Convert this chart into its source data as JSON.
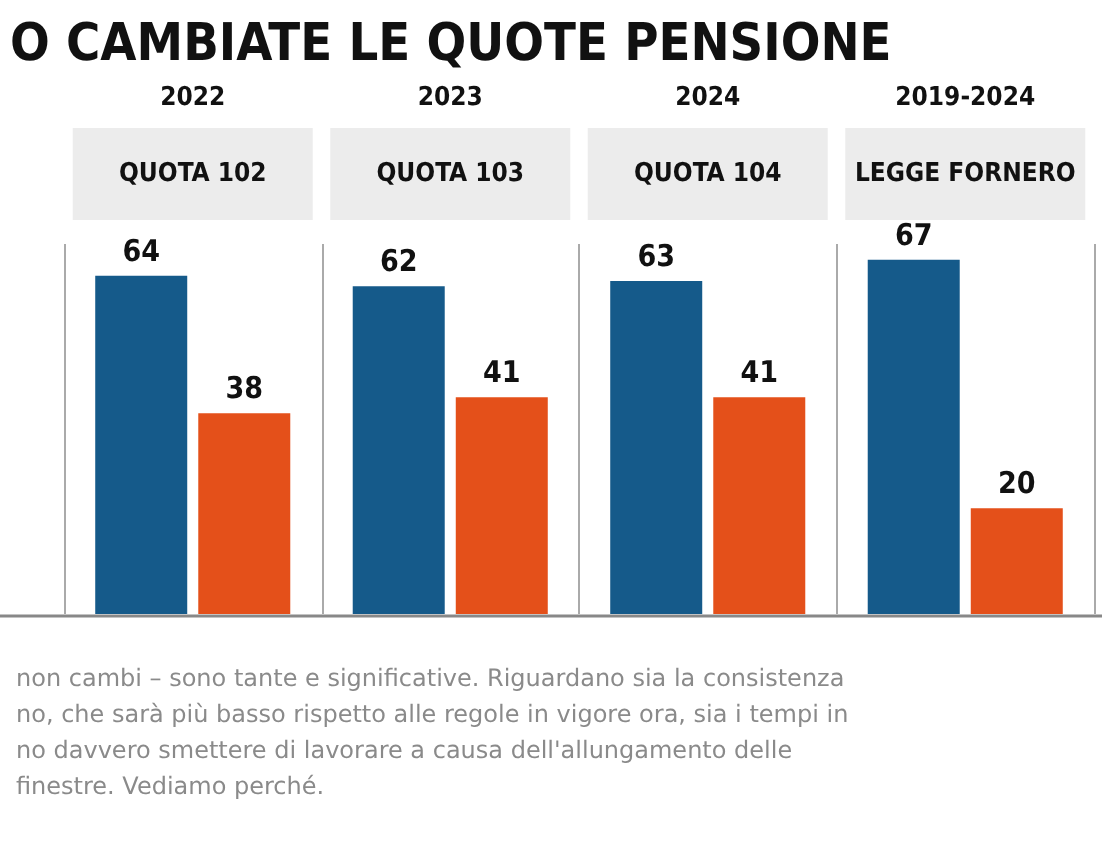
{
  "chart_data": {
    "type": "bar",
    "title": "O CAMBIATE LE QUOTE PENSIONE",
    "categories": [
      "2022\nQUOTA 102",
      "2023\nQUOTA 103",
      "2024\nQUOTA 104",
      "2019-2024\nLEGGE FORNERO"
    ],
    "series": [
      {
        "color": "#155a8a",
        "values": [
          64,
          62,
          63,
          67
        ]
      },
      {
        "color": "#e4501a",
        "values": [
          38,
          41,
          41,
          20
        ]
      }
    ],
    "data_labels": true,
    "grid": "x",
    "annotations": [
      "non cambi – sono tante e significative. Riguardano sia la consistenza\nno, che sarà più basso rispetto alle regole in vigore ora, sia i tempi in\nno davvero smettere di lavorare a causa dell'allungamento delle\nfinestre. Vediamo perché."
    ]
  }
}
